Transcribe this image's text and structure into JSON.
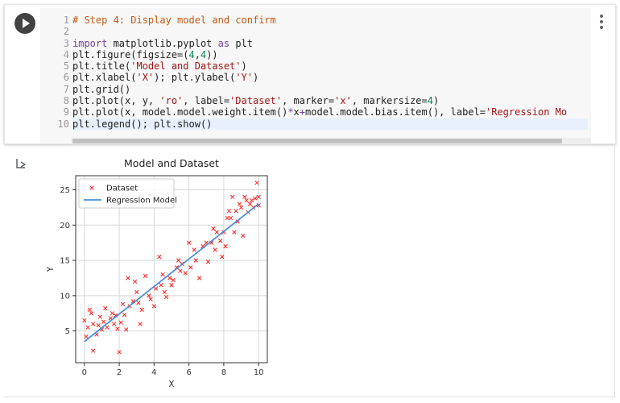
{
  "cell": {
    "line_numbers": [
      "1",
      "2",
      "3",
      "4",
      "5",
      "6",
      "7",
      "8",
      "9",
      "10"
    ],
    "code_lines": [
      [
        {
          "t": "cm",
          "v": "# Step 4: Display model and confirm"
        }
      ],
      [],
      [
        {
          "t": "kw",
          "v": "import"
        },
        {
          "t": "",
          "v": " matplotlib.pyplot "
        },
        {
          "t": "kw",
          "v": "as"
        },
        {
          "t": "",
          "v": " plt"
        }
      ],
      [
        {
          "t": "",
          "v": "plt.figure(figsize=("
        },
        {
          "t": "nm",
          "v": "4"
        },
        {
          "t": "",
          "v": ","
        },
        {
          "t": "nm",
          "v": "4"
        },
        {
          "t": "",
          "v": "))"
        }
      ],
      [
        {
          "t": "",
          "v": "plt.title("
        },
        {
          "t": "st",
          "v": "'Model and Dataset'"
        },
        {
          "t": "",
          "v": ")"
        }
      ],
      [
        {
          "t": "",
          "v": "plt.xlabel("
        },
        {
          "t": "st",
          "v": "'X'"
        },
        {
          "t": "",
          "v": "); plt.ylabel("
        },
        {
          "t": "st",
          "v": "'Y'"
        },
        {
          "t": "",
          "v": ")"
        }
      ],
      [
        {
          "t": "",
          "v": "plt.grid()"
        }
      ],
      [
        {
          "t": "",
          "v": "plt.plot(x, y, "
        },
        {
          "t": "st",
          "v": "'ro'"
        },
        {
          "t": "",
          "v": ", label="
        },
        {
          "t": "st",
          "v": "'Dataset'"
        },
        {
          "t": "",
          "v": ", marker="
        },
        {
          "t": "st",
          "v": "'x'"
        },
        {
          "t": "",
          "v": ", markersize="
        },
        {
          "t": "nm",
          "v": "4"
        },
        {
          "t": "",
          "v": ")"
        }
      ],
      [
        {
          "t": "",
          "v": "plt.plot(x, model.model.weight.item()"
        },
        {
          "t": "op",
          "v": "*"
        },
        {
          "t": "",
          "v": "x"
        },
        {
          "t": "op",
          "v": "+"
        },
        {
          "t": "",
          "v": "model.model.bias.item(), label="
        },
        {
          "t": "st",
          "v": "'Regression Mo"
        }
      ],
      [
        {
          "t": "",
          "v": "plt.legend(); plt.show()"
        }
      ]
    ]
  },
  "colors": {
    "marker": "#ff2020",
    "line": "#4a90d9",
    "grid": "#d8d8d8"
  },
  "chart_data": {
    "type": "scatter",
    "title": "Model and Dataset",
    "xlabel": "X",
    "ylabel": "Y",
    "xlim": [
      -0.5,
      10.5
    ],
    "ylim": [
      0.5,
      27.0
    ],
    "xticks": [
      0,
      2,
      4,
      6,
      8,
      10
    ],
    "yticks": [
      5,
      10,
      15,
      20,
      25
    ],
    "grid": true,
    "legend": {
      "placement": "top-left",
      "entries": [
        "Dataset",
        "Regression Model"
      ]
    },
    "series": [
      {
        "name": "Dataset",
        "marker": "x",
        "points": [
          [
            0.0,
            6.5
          ],
          [
            0.1,
            4.2
          ],
          [
            0.2,
            5.5
          ],
          [
            0.3,
            8.0
          ],
          [
            0.4,
            7.5
          ],
          [
            0.5,
            2.2
          ],
          [
            0.5,
            6.0
          ],
          [
            0.7,
            4.5
          ],
          [
            0.8,
            5.8
          ],
          [
            0.9,
            7.0
          ],
          [
            1.0,
            5.2
          ],
          [
            1.1,
            6.3
          ],
          [
            1.2,
            8.2
          ],
          [
            1.3,
            5.5
          ],
          [
            1.5,
            6.8
          ],
          [
            1.6,
            7.5
          ],
          [
            1.7,
            6.0
          ],
          [
            1.8,
            7.2
          ],
          [
            1.9,
            5.3
          ],
          [
            2.0,
            2.0
          ],
          [
            2.1,
            6.2
          ],
          [
            2.2,
            8.8
          ],
          [
            2.3,
            7.3
          ],
          [
            2.4,
            5.2
          ],
          [
            2.5,
            12.5
          ],
          [
            2.6,
            8.5
          ],
          [
            2.8,
            9.2
          ],
          [
            2.9,
            12.0
          ],
          [
            3.0,
            10.5
          ],
          [
            3.1,
            9.0
          ],
          [
            3.2,
            6.0
          ],
          [
            3.3,
            8.0
          ],
          [
            3.5,
            12.8
          ],
          [
            3.7,
            10.0
          ],
          [
            3.8,
            9.5
          ],
          [
            4.0,
            8.5
          ],
          [
            4.1,
            11.0
          ],
          [
            4.3,
            15.5
          ],
          [
            4.4,
            11.5
          ],
          [
            4.5,
            13.0
          ],
          [
            4.6,
            10.5
          ],
          [
            4.7,
            9.8
          ],
          [
            4.9,
            12.5
          ],
          [
            5.0,
            11.5
          ],
          [
            5.1,
            12.2
          ],
          [
            5.3,
            14.0
          ],
          [
            5.4,
            15.0
          ],
          [
            5.5,
            13.5
          ],
          [
            5.6,
            14.5
          ],
          [
            5.8,
            13.2
          ],
          [
            6.0,
            17.5
          ],
          [
            6.1,
            14.0
          ],
          [
            6.3,
            16.5
          ],
          [
            6.4,
            15.0
          ],
          [
            6.6,
            12.5
          ],
          [
            6.8,
            17.0
          ],
          [
            7.0,
            17.5
          ],
          [
            7.1,
            14.8
          ],
          [
            7.3,
            17.5
          ],
          [
            7.4,
            19.5
          ],
          [
            7.5,
            16.5
          ],
          [
            7.6,
            19.0
          ],
          [
            7.8,
            17.8
          ],
          [
            7.9,
            15.5
          ],
          [
            8.0,
            19.0
          ],
          [
            8.1,
            17.0
          ],
          [
            8.2,
            21.0
          ],
          [
            8.3,
            22.0
          ],
          [
            8.4,
            21.0
          ],
          [
            8.5,
            24.0
          ],
          [
            8.6,
            19.0
          ],
          [
            8.7,
            22.0
          ],
          [
            8.8,
            20.5
          ],
          [
            8.9,
            23.0
          ],
          [
            9.0,
            22.5
          ],
          [
            9.1,
            18.5
          ],
          [
            9.2,
            24.0
          ],
          [
            9.3,
            23.5
          ],
          [
            9.4,
            21.8
          ],
          [
            9.5,
            23.0
          ],
          [
            9.6,
            23.5
          ],
          [
            9.7,
            22.5
          ],
          [
            9.8,
            23.8
          ],
          [
            9.9,
            26.0
          ],
          [
            10.0,
            24.0
          ],
          [
            10.0,
            22.8
          ]
        ]
      },
      {
        "name": "Regression Model",
        "line": [
          [
            0.0,
            3.5
          ],
          [
            10.0,
            23.0
          ]
        ]
      }
    ]
  }
}
